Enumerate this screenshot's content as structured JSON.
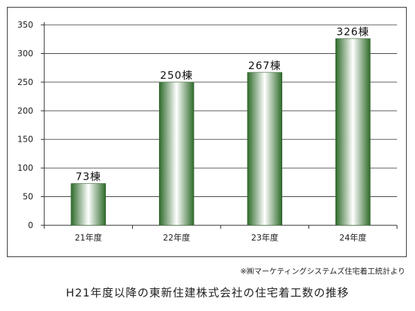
{
  "chart_data": {
    "type": "bar",
    "categories": [
      "21年度",
      "22年度",
      "23年度",
      "24年度"
    ],
    "values": [
      73,
      250,
      267,
      326
    ],
    "data_labels": [
      "73棟",
      "250棟",
      "267棟",
      "326棟"
    ],
    "ylim": [
      0,
      350
    ],
    "yticks": [
      0,
      50,
      100,
      150,
      200,
      250,
      300,
      350
    ],
    "grid": true,
    "bar_colors": {
      "edge": "#2e6b2a",
      "center": "#ffffff"
    }
  },
  "source_note": "※㈱マーケティングシステムズ住宅着工統計より",
  "caption": "H21年度以降の東新住建株式会社の住宅着工数の推移"
}
